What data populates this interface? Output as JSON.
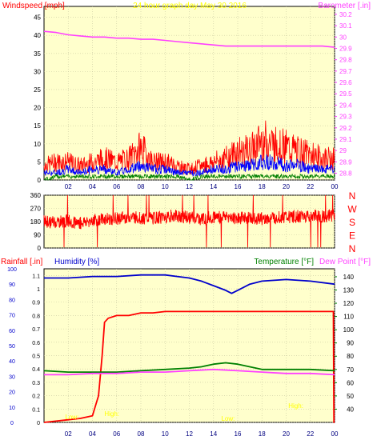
{
  "colors": {
    "background": "#ffffcc",
    "frame": "#000000",
    "grid": "#c8c8a0",
    "wind": "#ff0000",
    "gust": "#0000ff",
    "wind_avg": "#008000",
    "barometer": "#ff40ff",
    "rain": "#ff0000",
    "humidity": "#0000cc",
    "temperature": "#008000",
    "dewpoint": "#ff40ff",
    "overlay_text": "#ffff00"
  },
  "chart_data": [
    {
      "type": "line",
      "title": "24 hour graph day   May 30 2016",
      "ylabel_left": "Windspeed [mph]",
      "ylabel_right": "Barometer [.in]",
      "x_ticks": [
        "02",
        "04",
        "06",
        "08",
        "10",
        "12",
        "14",
        "16",
        "18",
        "20",
        "22",
        "00"
      ],
      "y_left_ticks": [
        "0",
        "5",
        "10",
        "15",
        "20",
        "25",
        "30",
        "35",
        "40",
        "45"
      ],
      "y_left_range": [
        0,
        48
      ],
      "y_right_ticks": [
        "28.8",
        "28.9",
        "29",
        "29.1",
        "29.2",
        "29.3",
        "29.4",
        "29.5",
        "29.6",
        "29.7",
        "29.8",
        "29.9",
        "30",
        "30.1",
        "30.2"
      ],
      "y_right_range": [
        28.74,
        30.27
      ],
      "barometer": {
        "x": [
          0,
          1,
          2,
          3,
          4,
          5,
          6,
          7,
          8,
          9,
          10,
          11,
          12,
          13,
          14,
          15,
          16,
          17,
          18,
          19,
          20,
          21,
          22,
          23,
          24
        ],
        "values": [
          30.05,
          30.04,
          30.02,
          30.01,
          30.0,
          30.0,
          29.99,
          29.99,
          29.98,
          29.98,
          29.97,
          29.96,
          29.95,
          29.94,
          29.93,
          29.92,
          29.92,
          29.92,
          29.92,
          29.92,
          29.92,
          29.92,
          29.92,
          29.92,
          29.91
        ]
      },
      "windspeed": {
        "x": [
          0,
          1,
          2,
          3,
          4,
          5,
          6,
          7,
          8,
          9,
          10,
          11,
          12,
          13,
          14,
          15,
          16,
          17,
          18,
          19,
          20,
          21,
          22,
          23,
          24
        ],
        "gust_values": [
          4,
          5,
          5,
          4,
          5,
          6,
          5,
          6,
          9,
          5,
          5,
          4,
          3,
          4,
          5,
          6,
          8,
          8,
          11,
          10,
          9,
          8,
          7,
          6,
          6
        ],
        "avg_values": [
          2,
          2,
          3,
          2,
          3,
          3,
          2,
          3,
          4,
          3,
          3,
          2,
          2,
          2,
          3,
          3,
          4,
          4,
          5,
          5,
          4,
          4,
          3,
          3,
          3
        ],
        "min_values": [
          0,
          1,
          1,
          1,
          1,
          1,
          1,
          1,
          1,
          1,
          1,
          1,
          0,
          1,
          1,
          1,
          1,
          1,
          1,
          1,
          1,
          1,
          1,
          1,
          1
        ]
      }
    },
    {
      "type": "line",
      "ylabel": "Wind direction",
      "y_ticks": [
        "0",
        "90",
        "180",
        "270",
        "360"
      ],
      "y_range": [
        0,
        360
      ],
      "compass_labels": [
        "N",
        "W",
        "S",
        "E",
        "N"
      ],
      "x_ticks": [
        "02",
        "04",
        "06",
        "08",
        "10",
        "12",
        "14",
        "16",
        "18",
        "20",
        "22",
        "00"
      ],
      "direction": {
        "x": [
          0,
          1,
          2,
          3,
          4,
          5,
          6,
          7,
          8,
          9,
          10,
          11,
          12,
          13,
          14,
          15,
          16,
          17,
          18,
          19,
          20,
          21,
          22,
          23,
          24
        ],
        "values": [
          180,
          175,
          185,
          170,
          190,
          195,
          200,
          210,
          205,
          200,
          215,
          220,
          205,
          200,
          210,
          215,
          205,
          210,
          200,
          205,
          210,
          215,
          220,
          215,
          225
        ]
      }
    },
    {
      "type": "line",
      "ylabel_left_1": "Rainfall [.in]",
      "ylabel_left_2": "Humidity [%]",
      "ylabel_right_1": "Temperature [°F]",
      "ylabel_right_2": "Dew Point [°F]",
      "x_ticks": [
        "02",
        "04",
        "06",
        "08",
        "10",
        "12",
        "14",
        "16",
        "18",
        "20",
        "22",
        "00"
      ],
      "humidity_ticks": [
        "0",
        "10",
        "20",
        "30",
        "40",
        "50",
        "60",
        "70",
        "80",
        "90",
        "100"
      ],
      "humidity_range": [
        0,
        100
      ],
      "rain_ticks": [
        "0",
        "0.1",
        "0.2",
        "0.3",
        "0.4",
        "0.5",
        "0.6",
        "0.7",
        "0.8",
        "0.9",
        "1",
        "1.1"
      ],
      "rain_range": [
        0,
        1.15
      ],
      "temp_ticks": [
        "40",
        "50",
        "60",
        "70",
        "80",
        "90",
        "100",
        "110",
        "120",
        "130",
        "140"
      ],
      "temp_range": [
        30,
        146
      ],
      "annotations": [
        "Low:",
        "High:",
        "Low:",
        "High:"
      ],
      "rainfall": {
        "x": [
          0,
          2,
          3,
          4,
          4.5,
          4.8,
          5.0,
          5.3,
          6.0,
          7,
          8,
          9,
          10,
          12,
          14,
          16,
          18,
          20,
          22,
          23.9,
          23.95,
          24
        ],
        "values": [
          0.0,
          0.02,
          0.03,
          0.05,
          0.2,
          0.5,
          0.75,
          0.78,
          0.8,
          0.8,
          0.82,
          0.82,
          0.83,
          0.83,
          0.83,
          0.83,
          0.83,
          0.83,
          0.83,
          0.83,
          0.0,
          0.0
        ]
      },
      "humidity": {
        "x": [
          0,
          2,
          4,
          6,
          8,
          10,
          11,
          12,
          13,
          14,
          15,
          15.5,
          16,
          17,
          18,
          20,
          22,
          24
        ],
        "values": [
          94,
          94,
          95,
          95,
          96,
          96,
          95,
          94,
          92,
          89,
          86,
          84,
          86,
          90,
          92,
          93,
          92,
          90
        ]
      },
      "temperature": {
        "x": [
          0,
          2,
          4,
          6,
          8,
          10,
          12,
          13,
          14,
          15,
          16,
          17,
          18,
          20,
          22,
          24
        ],
        "values": [
          69,
          68,
          68,
          68,
          69,
          70,
          71,
          72,
          74,
          75,
          74,
          72,
          70,
          70,
          70,
          69
        ]
      },
      "dewpoint": {
        "x": [
          0,
          2,
          4,
          6,
          8,
          10,
          12,
          14,
          16,
          18,
          20,
          22,
          24
        ],
        "values": [
          66,
          66,
          67,
          67,
          68,
          68,
          69,
          70,
          69,
          68,
          67,
          67,
          66
        ]
      }
    }
  ]
}
